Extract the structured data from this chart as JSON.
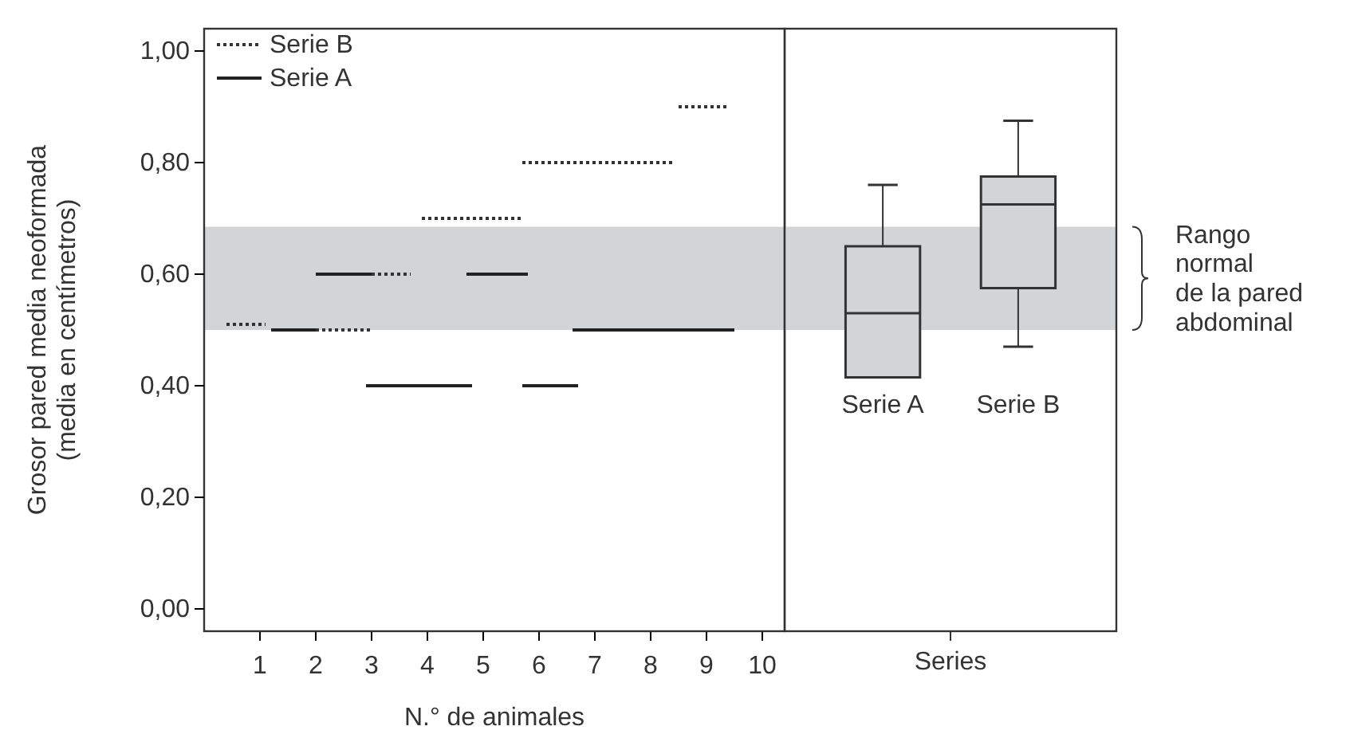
{
  "chart_data": [
    {
      "type": "line",
      "xlabel": "N.° de animales",
      "ylabel": "Grosor pared media neoformada\n(media en centímetros)",
      "xlim": [
        0,
        10.4
      ],
      "xticks": [
        1,
        2,
        3,
        4,
        5,
        6,
        7,
        8,
        9,
        10
      ],
      "ylim": [
        -0.04,
        1.04
      ],
      "yticks": [
        {
          "value": 0,
          "label": "0,00"
        },
        {
          "value": 0.2,
          "label": "0,20"
        },
        {
          "value": 0.4,
          "label": "0,40"
        },
        {
          "value": 0.6,
          "label": "0,60"
        },
        {
          "value": 0.8,
          "label": "0,80"
        },
        {
          "value": 1,
          "label": "1,00"
        }
      ],
      "legend": "top left",
      "bands": [
        {
          "axis": "y",
          "from": 0.5,
          "to": 0.685,
          "color": "#d3d4d6"
        }
      ],
      "series": [
        {
          "name": "Serie B",
          "color": "#333333",
          "line_style": "dotted",
          "x": [
            0.4,
            1.1
          ],
          "values": [
            0.51,
            0.51
          ]
        },
        {
          "name": "Serie A",
          "color": "#222222",
          "line_style": "solid",
          "x": [
            1.2,
            2.0
          ],
          "values": [
            0.5,
            0.5
          ]
        },
        {
          "color": "#333333",
          "line_style": "dotted",
          "x": [
            2.0,
            3.0
          ],
          "values": [
            0.5,
            0.5
          ]
        },
        {
          "color": "#333333",
          "line_style": "dotted",
          "x": [
            3.0,
            3.7
          ],
          "values": [
            0.6,
            0.6
          ]
        },
        {
          "color": "#333333",
          "line_style": "dotted",
          "x": [
            3.9,
            5.7
          ],
          "values": [
            0.7,
            0.7
          ]
        },
        {
          "color": "#333333",
          "line_style": "dotted",
          "x": [
            5.7,
            8.4
          ],
          "values": [
            0.8,
            0.8
          ]
        },
        {
          "color": "#333333",
          "line_style": "dotted",
          "x": [
            8.5,
            9.4
          ],
          "values": [
            0.9,
            0.9
          ]
        },
        {
          "color": "#222222",
          "line_style": "solid",
          "x": [
            2.0,
            3.0
          ],
          "values": [
            0.6,
            0.6
          ]
        },
        {
          "color": "#222222",
          "line_style": "solid",
          "x": [
            2.9,
            4.8
          ],
          "values": [
            0.4,
            0.4
          ]
        },
        {
          "color": "#222222",
          "line_style": "solid",
          "x": [
            4.7,
            5.8
          ],
          "values": [
            0.6,
            0.6
          ]
        },
        {
          "color": "#222222",
          "line_style": "solid",
          "x": [
            5.7,
            6.7
          ],
          "values": [
            0.4,
            0.4
          ]
        },
        {
          "color": "#222222",
          "line_style": "solid",
          "x": [
            6.6,
            9.5
          ],
          "values": [
            0.5,
            0.5
          ]
        }
      ]
    },
    {
      "type": "box",
      "xlabel": "Series",
      "categories": [
        "Serie A",
        "Serie B"
      ],
      "ylim": [
        -0.04,
        1.04
      ],
      "tick_labels": "x",
      "color": "#d3d4d6",
      "bands": [
        {
          "axis": "y",
          "from": 0.5,
          "to": 0.685,
          "color": "#d3d4d6",
          "label": "Rango\nnormal\nde la pared\nabdominal"
        }
      ],
      "boxes": [
        {
          "low": 0.415,
          "q1": 0.415,
          "median": 0.53,
          "q3": 0.65,
          "high": 0.76
        },
        {
          "low": 0.47,
          "q1": 0.575,
          "median": 0.725,
          "q3": 0.775,
          "high": 0.875
        }
      ]
    }
  ]
}
